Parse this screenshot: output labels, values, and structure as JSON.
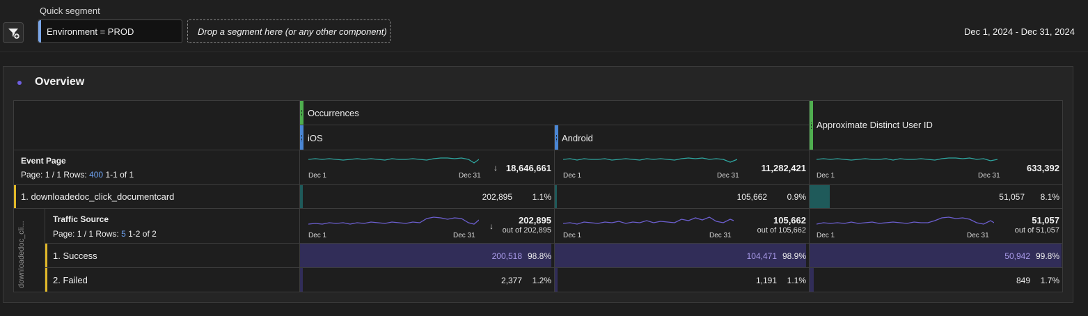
{
  "topbar": {
    "quick_segment_label": "Quick segment",
    "segment_text": "Environment = PROD",
    "drop_placeholder": "Drop a segment here (or any other component)",
    "date_range": "Dec 1, 2024 - Dec 31, 2024"
  },
  "panel": {
    "title": "Overview",
    "headers": {
      "occurrences": "Occurrences",
      "ios": "iOS",
      "android": "Android",
      "approx_users": "Approximate Distinct User ID"
    },
    "event_page": {
      "label": "Event Page",
      "page_text": "Page: 1 / 1 Rows:",
      "rows_count": "400",
      "range": "1-1 of 1",
      "spark_start": "Dec 1",
      "spark_end": "Dec 31",
      "sort_arrow": "↓",
      "ios_total": "18,646,661",
      "android_total": "11,282,421",
      "users_total": "633,392"
    },
    "row1": {
      "label": "1.  downloadedoc_click_documentcard",
      "ios_value": "202,895",
      "ios_pct": "1.1%",
      "ios_share": 0.011,
      "android_value": "105,662",
      "android_pct": "0.9%",
      "android_share": 0.009,
      "users_value": "51,057",
      "users_pct": "8.1%",
      "users_share": 0.081
    },
    "breakdown": {
      "vertical_label": "downloadedoc_cli...",
      "label": "Traffic Source",
      "page_text": "Page: 1 / 1 Rows:",
      "rows_count": "5",
      "range": "1-2 of 2",
      "sort_arrow": "↓",
      "ios_total": "202,895",
      "ios_out_of": "out of 202,895",
      "android_total": "105,662",
      "android_out_of": "out of 105,662",
      "users_total": "51,057",
      "users_out_of": "out of 51,057",
      "items": [
        {
          "label": "1.  Success",
          "ios_value": "200,518",
          "ios_pct": "98.8%",
          "ios_share": 0.988,
          "android_value": "104,471",
          "android_pct": "98.9%",
          "android_share": 0.989,
          "users_value": "50,942",
          "users_pct": "99.8%",
          "users_share": 0.998
        },
        {
          "label": "2.  Failed",
          "ios_value": "2,377",
          "ios_pct": "1.2%",
          "ios_share": 0.012,
          "android_value": "1,191",
          "android_pct": "1.1%",
          "android_share": 0.011,
          "users_value": "849",
          "users_pct": "1.7%",
          "users_share": 0.017
        }
      ]
    }
  },
  "colors": {
    "accent_purple": "#6e5fe0",
    "teal_line": "#2fa6a0",
    "purple_line": "#6c5fd0",
    "metric_green": "#4fae4f",
    "dimension_blue": "#4a86d4",
    "row_yellow": "#e1b829"
  },
  "icons": {
    "filter": "filter-add-icon",
    "panel_dot": "bullet-dot-icon",
    "sort": "arrow-down-icon"
  }
}
